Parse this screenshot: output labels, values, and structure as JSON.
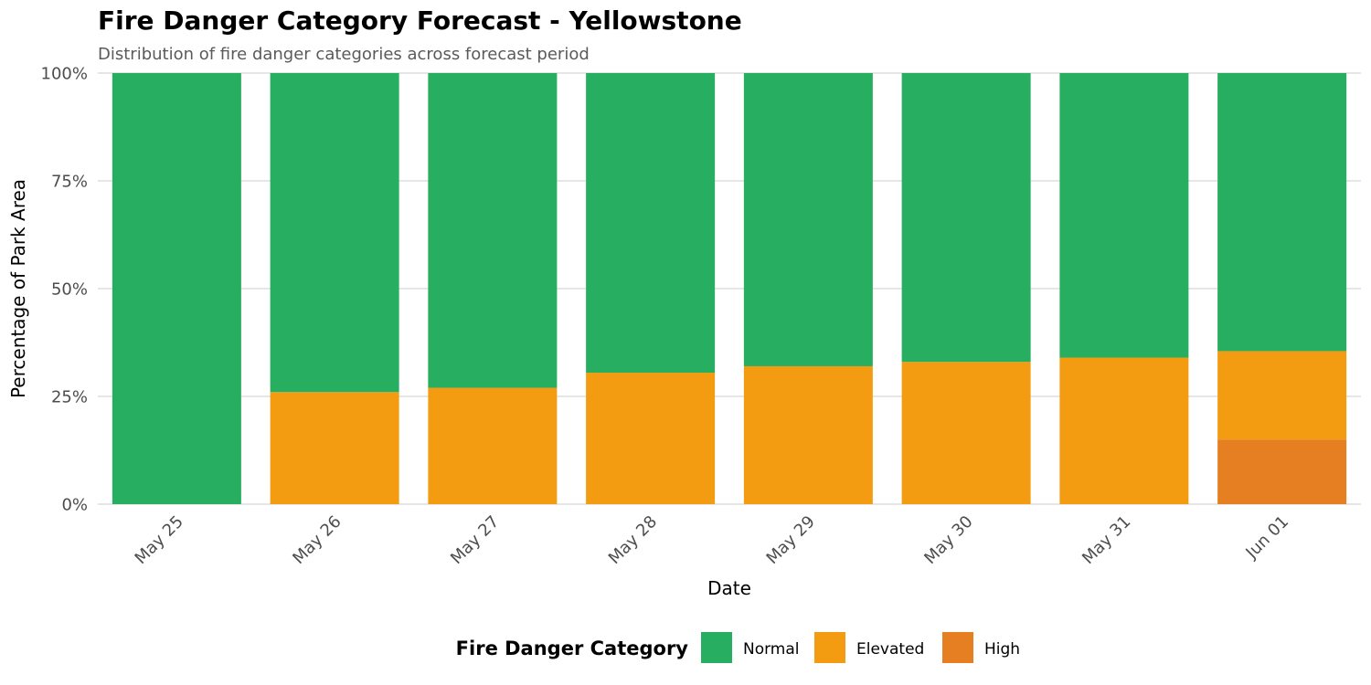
{
  "chart_data": {
    "type": "bar",
    "stacked": true,
    "title": "Fire Danger Category Forecast - Yellowstone",
    "subtitle": "Distribution of fire danger categories across forecast period",
    "xlabel": "Date",
    "ylabel": "Percentage of Park Area",
    "ylim": [
      0,
      100
    ],
    "y_ticks": [
      0,
      25,
      50,
      75,
      100
    ],
    "y_tick_labels": [
      "0%",
      "25%",
      "50%",
      "75%",
      "100%"
    ],
    "grid": true,
    "categories": [
      "May 25",
      "May 26",
      "May 27",
      "May 28",
      "May 29",
      "May 30",
      "May 31",
      "Jun 01"
    ],
    "series": [
      {
        "name": "High",
        "color": "#e67e22",
        "values": [
          0,
          0,
          0,
          0,
          0,
          0,
          0,
          15
        ]
      },
      {
        "name": "Elevated",
        "color": "#f39c12",
        "values": [
          0,
          26,
          27,
          30.5,
          32,
          33,
          34,
          20.5
        ]
      },
      {
        "name": "Normal",
        "color": "#27ae60",
        "values": [
          100,
          74,
          73,
          69.5,
          68,
          67,
          66,
          64.5
        ]
      }
    ],
    "legend": {
      "title": "Fire Danger Category",
      "position": "bottom",
      "order": [
        "Normal",
        "Elevated",
        "High"
      ]
    }
  }
}
